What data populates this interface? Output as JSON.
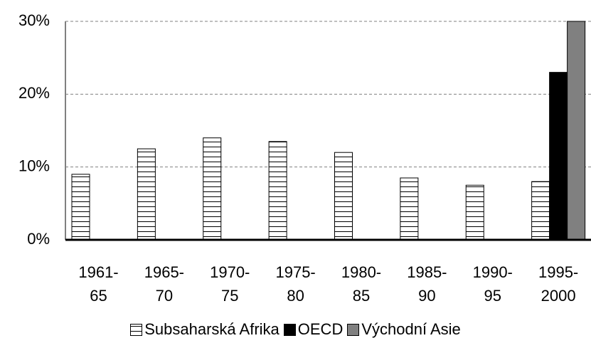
{
  "chart_data": {
    "type": "bar",
    "categories": [
      "1961-\n65",
      "1965-\n70",
      "1970-\n75",
      "1975-\n80",
      "1980-\n85",
      "1985-\n90",
      "1990-\n95",
      "1995-\n2000"
    ],
    "series": [
      {
        "name": "Subsaharská Afrika",
        "color": "#ffffff",
        "hatch": "horizontal",
        "values": [
          9,
          12.5,
          14,
          13.5,
          12,
          8.5,
          7.5,
          8
        ]
      },
      {
        "name": "OECD",
        "color": "#000000",
        "values": [
          null,
          null,
          null,
          null,
          null,
          null,
          null,
          23
        ]
      },
      {
        "name": "Východní Asie",
        "color": "#808080",
        "values": [
          null,
          null,
          null,
          null,
          null,
          null,
          null,
          30
        ]
      }
    ],
    "ylim": [
      0,
      30
    ],
    "yticks": [
      {
        "value": 0,
        "label": "0%"
      },
      {
        "value": 10,
        "label": "10%"
      },
      {
        "value": 20,
        "label": "20%"
      },
      {
        "value": 30,
        "label": "30%"
      }
    ],
    "grid": true,
    "legend": "bottom"
  }
}
